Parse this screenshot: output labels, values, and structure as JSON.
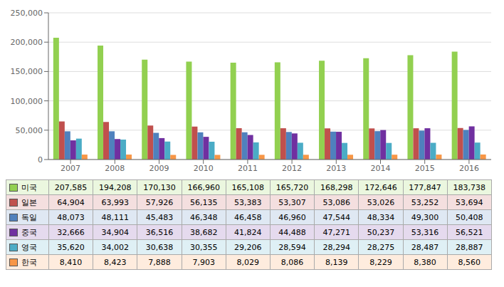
{
  "chart_data": {
    "type": "bar",
    "categories": [
      "2007",
      "2008",
      "2009",
      "2010",
      "2011",
      "2012",
      "2013",
      "2014",
      "2015",
      "2016"
    ],
    "series": [
      {
        "name": "미국",
        "color": "#92d050",
        "values": [
          207585,
          194208,
          170130,
          166960,
          165108,
          165720,
          168298,
          172646,
          177847,
          183738
        ],
        "value_labels": [
          "207,585",
          "194,208",
          "170,130",
          "166,960",
          "165,108",
          "165,720",
          "168,298",
          "172,646",
          "177,847",
          "183,738"
        ]
      },
      {
        "name": "일본",
        "color": "#c0504d",
        "values": [
          64904,
          63993,
          57926,
          56135,
          53383,
          53307,
          53086,
          53026,
          53252,
          53694
        ],
        "value_labels": [
          "64,904",
          "63,993",
          "57,926",
          "56,135",
          "53,383",
          "53,307",
          "53,086",
          "53,026",
          "53,252",
          "53,694"
        ]
      },
      {
        "name": "독일",
        "color": "#4f81bd",
        "values": [
          48073,
          48111,
          45483,
          46348,
          46458,
          46960,
          47544,
          48334,
          49300,
          50408
        ],
        "value_labels": [
          "48,073",
          "48,111",
          "45,483",
          "46,348",
          "46,458",
          "46,960",
          "47,544",
          "48,334",
          "49,300",
          "50,408"
        ]
      },
      {
        "name": "중국",
        "color": "#7030a0",
        "values": [
          32666,
          34904,
          36516,
          38682,
          41824,
          44488,
          47271,
          50237,
          53316,
          56521
        ],
        "value_labels": [
          "32,666",
          "34,904",
          "36,516",
          "38,682",
          "41,824",
          "44,488",
          "47,271",
          "50,237",
          "53,316",
          "56,521"
        ]
      },
      {
        "name": "영국",
        "color": "#4bacc6",
        "values": [
          35620,
          34002,
          30638,
          30355,
          29206,
          28594,
          28294,
          28275,
          28487,
          28887
        ],
        "value_labels": [
          "35,620",
          "34,002",
          "30,638",
          "30,355",
          "29,206",
          "28,594",
          "28,294",
          "28,275",
          "28,487",
          "28,887"
        ]
      },
      {
        "name": "한국",
        "color": "#f79646",
        "values": [
          8410,
          8423,
          7888,
          7903,
          8029,
          8086,
          8139,
          8229,
          8380,
          8560
        ],
        "value_labels": [
          "8,410",
          "8,423",
          "7,888",
          "7,903",
          "8,029",
          "8,086",
          "8,139",
          "8,229",
          "8,380",
          "8,560"
        ]
      }
    ],
    "ylim": [
      0,
      250000
    ],
    "yticks": [
      0,
      {
        "value": 50000,
        "label": "50,000"
      },
      {
        "value": 100000,
        "label": "100,000"
      },
      {
        "value": 150000,
        "label": "150,000"
      },
      {
        "value": 200000,
        "label": "200,000"
      },
      {
        "value": 250000,
        "label": "250,000"
      }
    ],
    "grid": true
  }
}
